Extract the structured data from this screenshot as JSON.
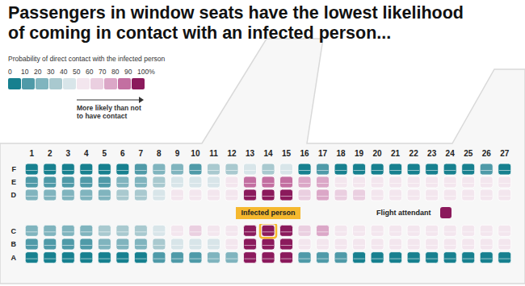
{
  "chart_data": {
    "type": "heatmap",
    "title": "Passengers in window seats have the lowest likelihood of coming in contact with an infected person...",
    "categories": [
      "1",
      "2",
      "3",
      "4",
      "5",
      "6",
      "7",
      "8",
      "9",
      "10",
      "11",
      "12",
      "13",
      "14",
      "15",
      "16",
      "17",
      "18",
      "19",
      "20",
      "21",
      "22",
      "23",
      "24",
      "25",
      "26",
      "27"
    ],
    "seats": [
      "A",
      "B",
      "C",
      "D",
      "E",
      "F"
    ],
    "values": [
      [
        5,
        5,
        5,
        5,
        5,
        5,
        5,
        15,
        15,
        15,
        25,
        25,
        95,
        95,
        95,
        15,
        15,
        15,
        5,
        5,
        5,
        5,
        5,
        5,
        5,
        5,
        5
      ],
      [
        15,
        15,
        15,
        15,
        25,
        25,
        25,
        35,
        45,
        45,
        45,
        55,
        95,
        95,
        95,
        55,
        55,
        55,
        55,
        55,
        55,
        55,
        55,
        55,
        55,
        55,
        55
      ],
      [
        25,
        25,
        25,
        25,
        35,
        35,
        35,
        45,
        55,
        65,
        55,
        55,
        95,
        95,
        95,
        65,
        75,
        55,
        55,
        55,
        55,
        55,
        55,
        55,
        55,
        55,
        55
      ],
      [
        25,
        25,
        25,
        25,
        25,
        35,
        35,
        45,
        55,
        55,
        55,
        55,
        95,
        95,
        95,
        65,
        75,
        65,
        65,
        55,
        55,
        55,
        55,
        55,
        55,
        55,
        55
      ],
      [
        15,
        15,
        15,
        15,
        15,
        25,
        25,
        35,
        45,
        45,
        45,
        55,
        85,
        85,
        85,
        75,
        75,
        55,
        55,
        55,
        55,
        55,
        55,
        55,
        55,
        55,
        55
      ],
      [
        5,
        5,
        5,
        5,
        5,
        5,
        15,
        25,
        25,
        15,
        35,
        35,
        45,
        35,
        45,
        5,
        15,
        5,
        5,
        5,
        5,
        5,
        5,
        5,
        5,
        15,
        5
      ]
    ],
    "colorbar": {
      "label": "Probability of direct contact with the infected person",
      "range": [
        0,
        100
      ],
      "ticks": [
        0,
        10,
        20,
        30,
        40,
        50,
        60,
        70,
        80,
        90,
        {
          "value": 100,
          "label": "100%"
        }
      ],
      "colors": [
        "#17808f",
        "#4f9aa8",
        "#80b4be",
        "#a9c9cf",
        "#d8e5e9",
        "#f3e6ee",
        "#eacfe0",
        "#dba7c7",
        "#c36fa1",
        "#8b1a5c"
      ],
      "arrow_label": [
        "More likely than not",
        "to have contact"
      ]
    },
    "annotations": [
      {
        "text": "Infected person",
        "row": "14",
        "seat": "C",
        "color": "#f5b82e"
      },
      {
        "text": "Flight attendant",
        "color": "#8b1a5c"
      }
    ]
  }
}
